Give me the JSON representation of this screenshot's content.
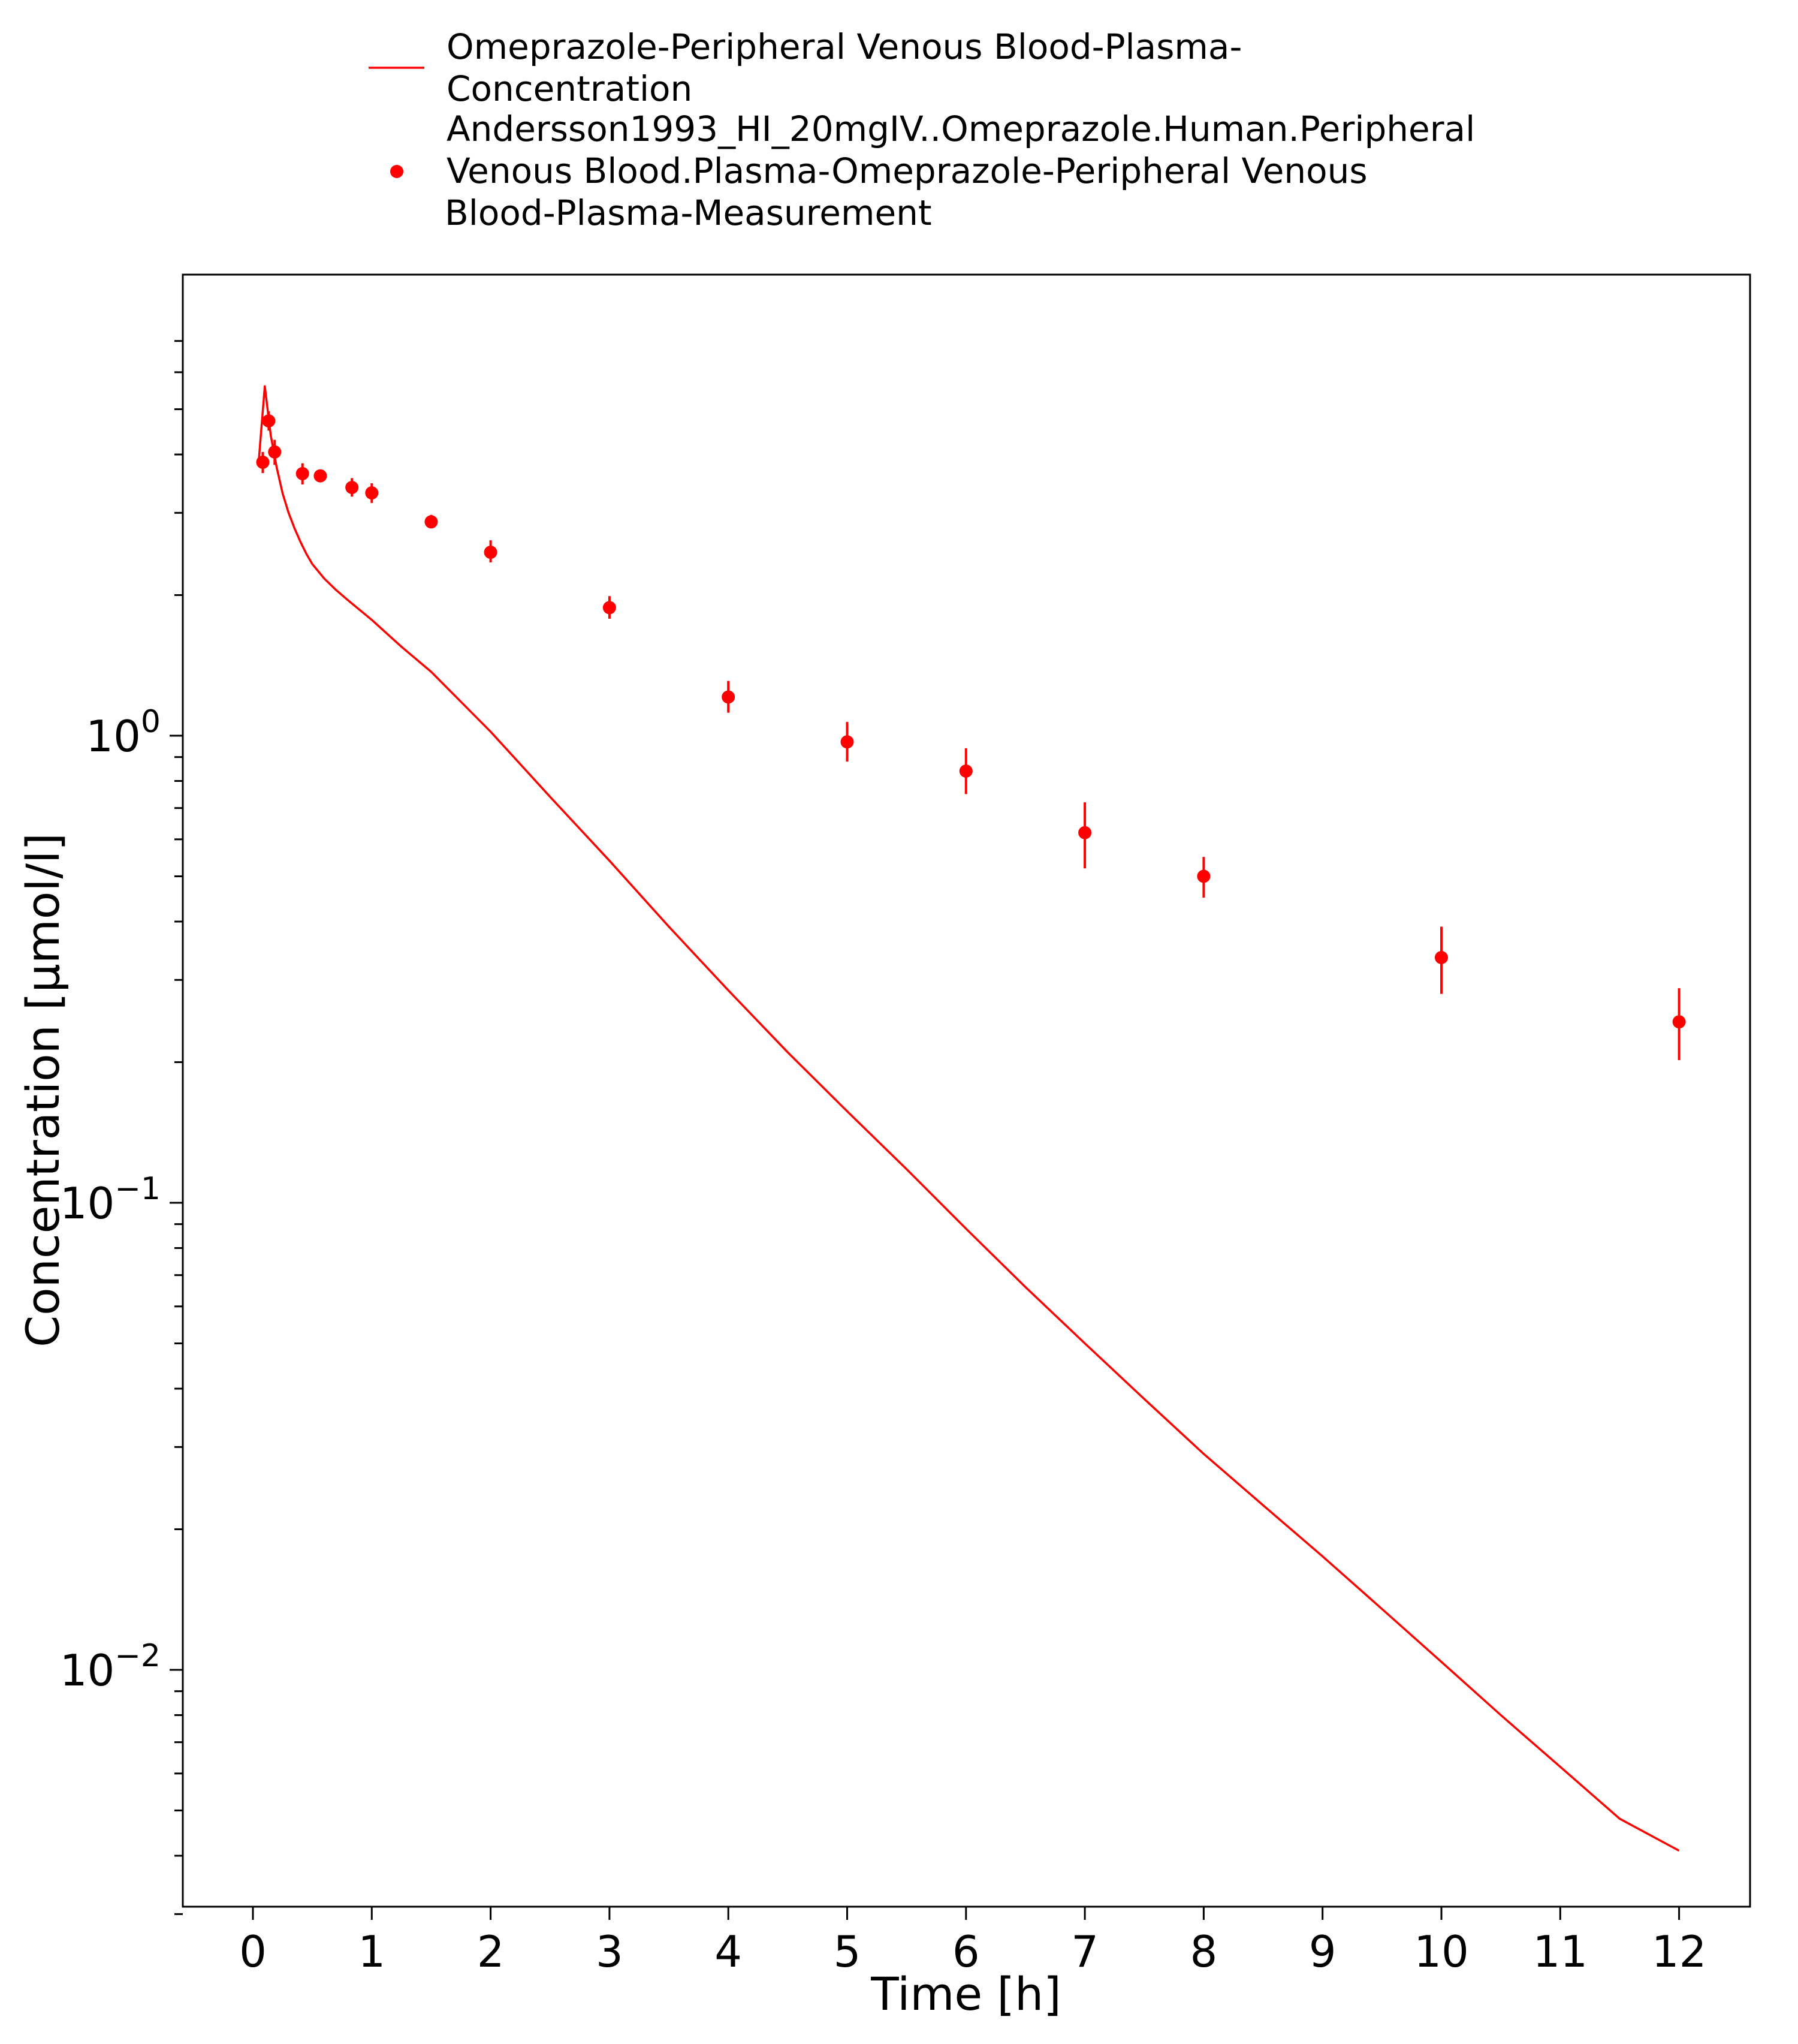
{
  "chart_data": {
    "type": "line",
    "xlabel": "Time [h]",
    "ylabel": "Concentration [µmol/l]",
    "xlim": [
      -0.6,
      12.6
    ],
    "ylim": [
      0.0025,
      7.5
    ],
    "yscale": "log",
    "xticks": [
      0,
      1,
      2,
      3,
      4,
      5,
      6,
      7,
      8,
      9,
      10,
      11,
      12
    ],
    "xtick_labels": [
      "0",
      "1",
      "2",
      "3",
      "4",
      "5",
      "6",
      "7",
      "8",
      "9",
      "10",
      "11",
      "12"
    ],
    "yticks": [
      {
        "value": 1,
        "base": "10",
        "exp": "0"
      },
      {
        "value": 0.1,
        "base": "10",
        "exp": "−1"
      },
      {
        "value": 0.01,
        "base": "10",
        "exp": "−2"
      }
    ],
    "grid": false,
    "legend_position": "top",
    "color": "#ff0000",
    "series": [
      {
        "name": "Omeprazole-Peripheral Venous Blood-Plasma-Concentration",
        "legend_lines": [
          "Omeprazole-Peripheral Venous Blood-Plasma-",
          "Concentration"
        ],
        "kind": "line",
        "x": [
          0.05,
          0.1,
          0.15,
          0.2,
          0.25,
          0.3,
          0.35,
          0.4,
          0.45,
          0.5,
          0.6,
          0.7,
          0.8,
          1.0,
          1.25,
          1.5,
          2.0,
          2.5,
          3.0,
          3.5,
          4.0,
          4.5,
          5.0,
          5.5,
          6.0,
          6.5,
          7.0,
          7.5,
          8.0,
          8.5,
          9.0,
          9.5,
          10.0,
          10.5,
          11.0,
          11.5,
          12.0
        ],
        "y": [
          3.9,
          5.6,
          4.4,
          3.75,
          3.3,
          3.0,
          2.78,
          2.6,
          2.45,
          2.33,
          2.17,
          2.05,
          1.95,
          1.77,
          1.55,
          1.37,
          1.02,
          0.74,
          0.54,
          0.39,
          0.285,
          0.21,
          0.157,
          0.118,
          0.088,
          0.066,
          0.05,
          0.038,
          0.029,
          0.0225,
          0.0175,
          0.0135,
          0.0104,
          0.008,
          0.0062,
          0.0048,
          0.0041
        ]
      },
      {
        "name": "Andersson1993_HI_20mgIV..Omeprazole.Human.Peripheral Venous Blood.Plasma-Omeprazole-Peripheral Venous Blood-Plasma-Measurement",
        "legend_lines": [
          "Andersson1993_HI_20mgIV..Omeprazole.Human.Peripheral",
          "Venous Blood.Plasma-Omeprazole-Peripheral Venous",
          "Blood-Plasma-Measurement"
        ],
        "kind": "scatter",
        "x": [
          0.083,
          0.133,
          0.183,
          0.417,
          0.567,
          0.833,
          1.0,
          1.5,
          2.0,
          3.0,
          4.0,
          5.0,
          6.0,
          7.0,
          8.0,
          10.0,
          12.0
        ],
        "y": [
          3.85,
          4.72,
          4.05,
          3.64,
          3.6,
          3.4,
          3.31,
          2.87,
          2.47,
          1.88,
          1.21,
          0.97,
          0.84,
          0.62,
          0.5,
          0.335,
          0.244
        ],
        "y_low": [
          3.65,
          4.5,
          3.8,
          3.45,
          3.5,
          3.25,
          3.15,
          2.78,
          2.35,
          1.78,
          1.12,
          0.88,
          0.75,
          0.52,
          0.45,
          0.28,
          0.202
        ],
        "y_high": [
          4.05,
          4.95,
          4.3,
          3.83,
          3.7,
          3.56,
          3.47,
          2.97,
          2.62,
          1.99,
          1.31,
          1.07,
          0.94,
          0.72,
          0.55,
          0.39,
          0.288
        ]
      }
    ]
  }
}
